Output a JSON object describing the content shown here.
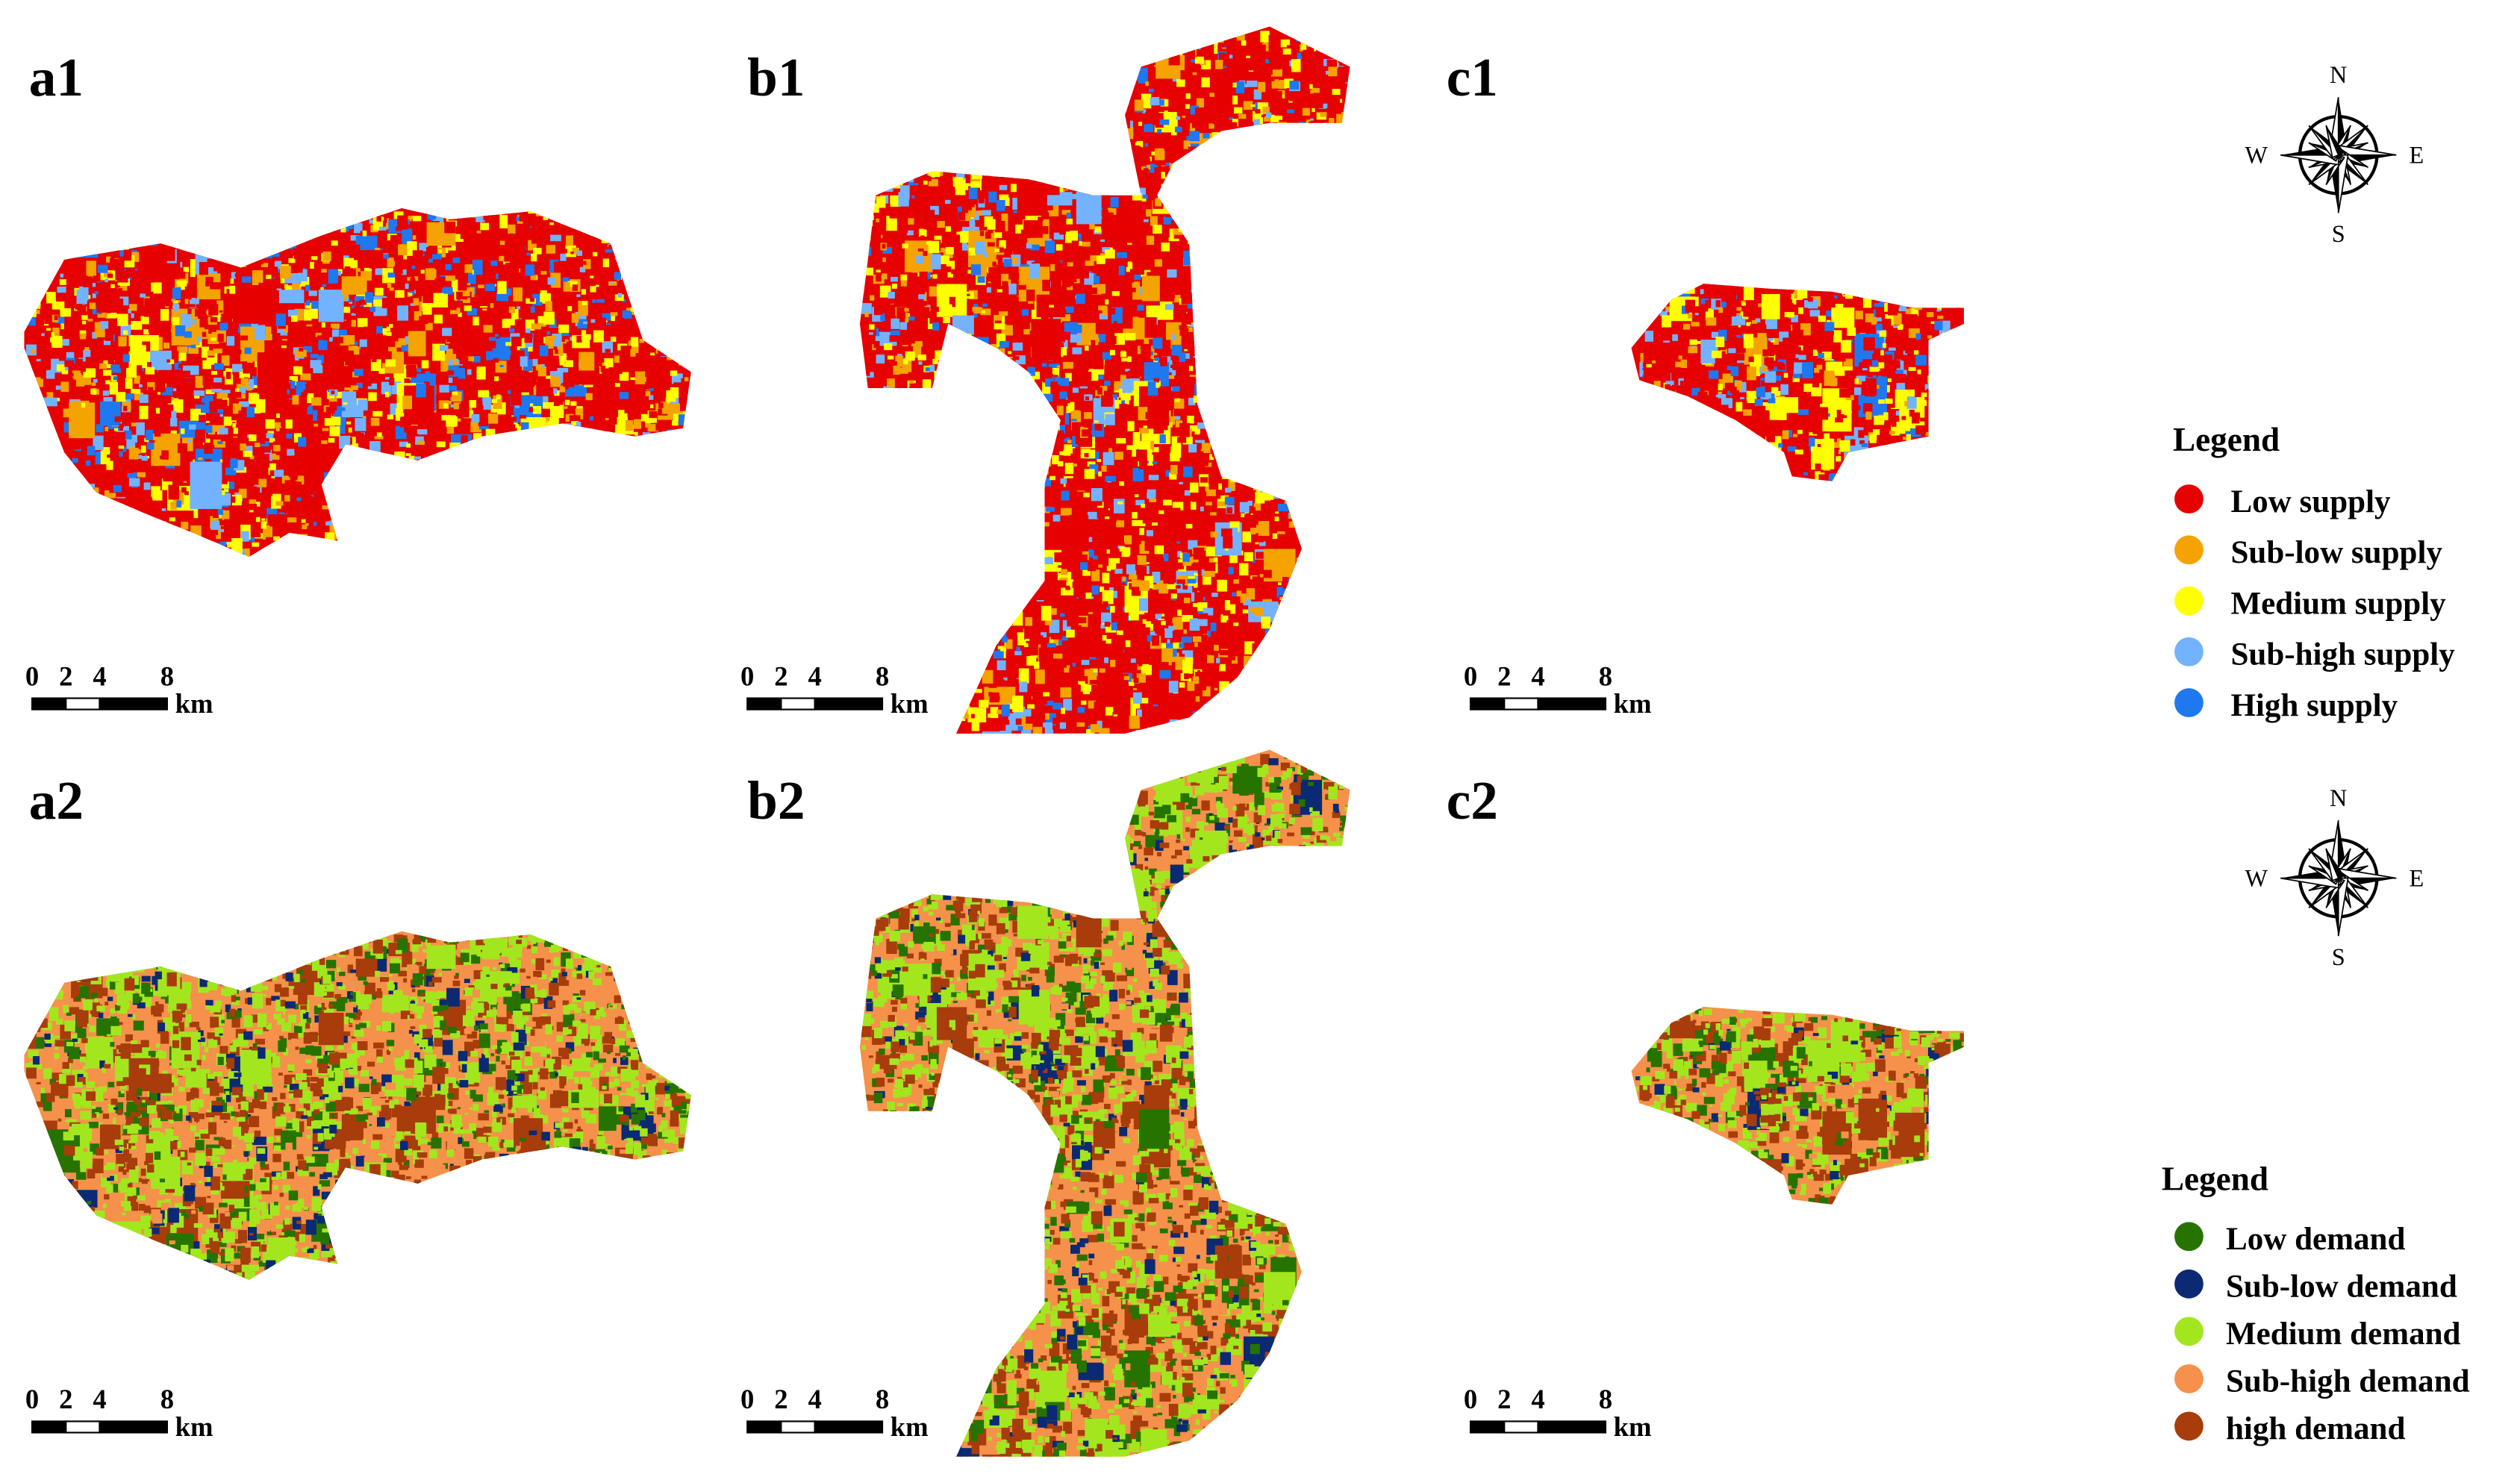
{
  "panels": [
    {
      "label": "a1",
      "scale_bar": {
        "ticks": [
          0,
          2,
          4,
          8
        ],
        "unit": "km"
      }
    },
    {
      "label": "b1",
      "scale_bar": {
        "ticks": [
          0,
          2,
          4,
          8
        ],
        "unit": "km"
      }
    },
    {
      "label": "c1",
      "scale_bar": {
        "ticks": [
          0,
          2,
          4,
          8
        ],
        "unit": "km"
      }
    },
    {
      "label": "a2",
      "scale_bar": {
        "ticks": [
          0,
          2,
          4,
          8
        ],
        "unit": "km"
      }
    },
    {
      "label": "b2",
      "scale_bar": {
        "ticks": [
          0,
          2,
          4,
          8
        ],
        "unit": "km"
      }
    },
    {
      "label": "c2",
      "scale_bar": {
        "ticks": [
          0,
          2,
          4,
          8
        ],
        "unit": "km"
      }
    }
  ],
  "compasses": [
    {
      "north": "N",
      "south": "S",
      "west": "W",
      "east": "E"
    },
    {
      "north": "N",
      "south": "S",
      "west": "W",
      "east": "E"
    }
  ],
  "legends": [
    {
      "title": "Legend",
      "items": [
        {
          "label": "Low supply",
          "color": "#e60000"
        },
        {
          "label": "Sub-low supply",
          "color": "#f5a300"
        },
        {
          "label": "Medium supply",
          "color": "#ffff00"
        },
        {
          "label": "Sub-high supply",
          "color": "#73b2ff"
        },
        {
          "label": "High supply",
          "color": "#1f78f0"
        }
      ]
    },
    {
      "title": "Legend",
      "items": [
        {
          "label": "Low demand",
          "color": "#267300"
        },
        {
          "label": "Sub-low demand",
          "color": "#0c2a73"
        },
        {
          "label": "Medium demand",
          "color": "#a3e61e"
        },
        {
          "label": "Sub-high demand",
          "color": "#f5914a"
        },
        {
          "label": "high demand",
          "color": "#a83c0a"
        }
      ]
    }
  ]
}
